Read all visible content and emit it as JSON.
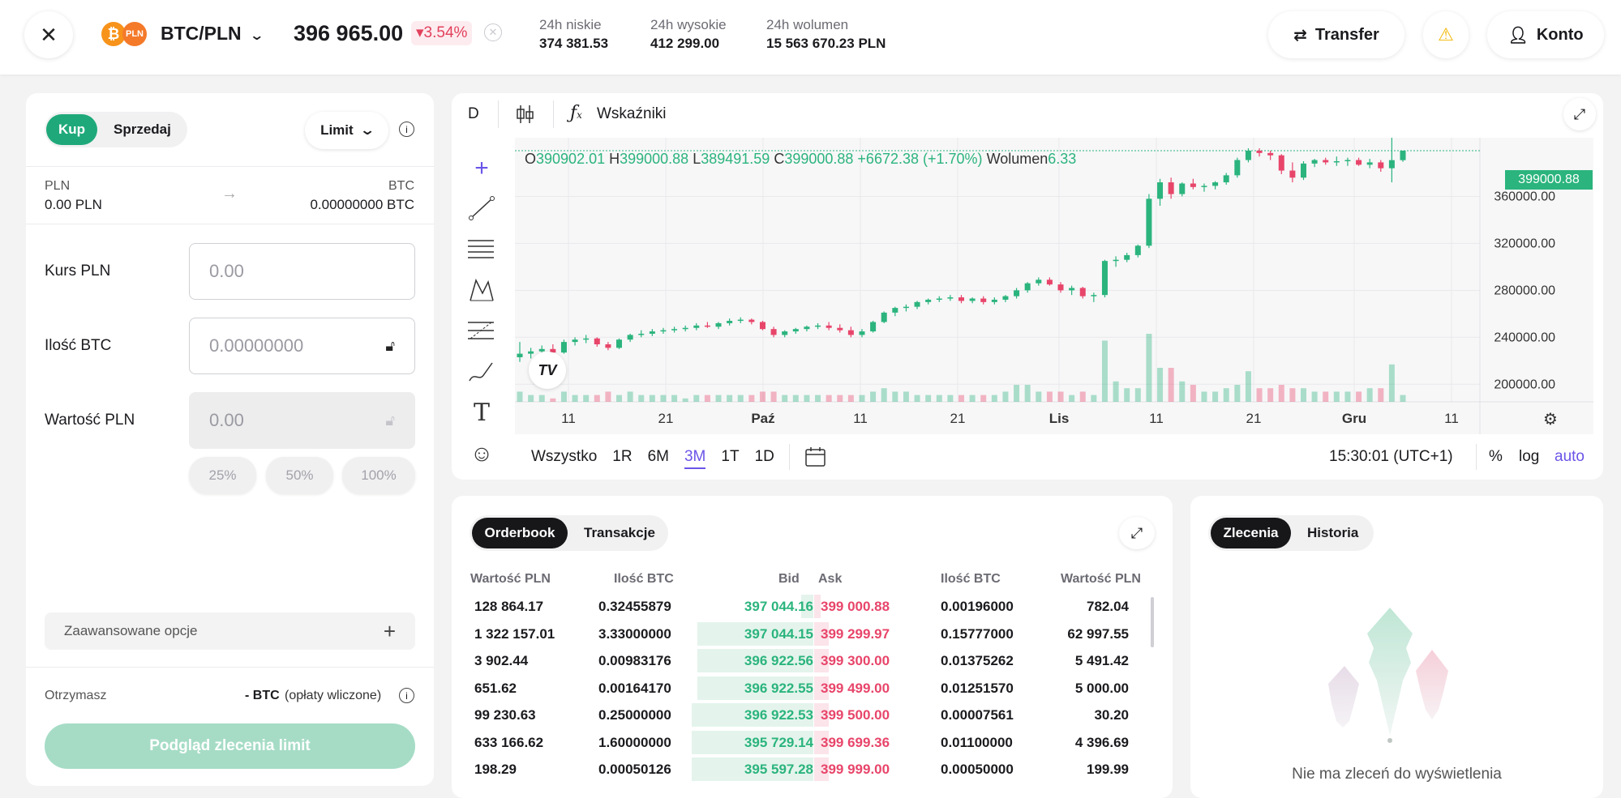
{
  "header": {
    "pair": "BTC/PLN",
    "coin_badge": "PLN",
    "price": "396 965.00",
    "change": "▾3.54%",
    "stats": [
      {
        "label": "24h niskie",
        "value": "374 381.53"
      },
      {
        "label": "24h wysokie",
        "value": "412 299.00"
      },
      {
        "label": "24h wolumen",
        "value": "15 563 670.23 PLN"
      }
    ],
    "transfer_label": "Transfer",
    "account_label": "Konto"
  },
  "order_form": {
    "buy_label": "Kup",
    "sell_label": "Sprzedaj",
    "order_type": "Limit",
    "from_currency": "PLN",
    "from_amount": "0.00 PLN",
    "to_currency": "BTC",
    "to_amount": "0.00000000 BTC",
    "rate_label": "Kurs PLN",
    "rate_placeholder": "0.00",
    "amount_label": "Ilość BTC",
    "amount_placeholder": "0.00000000",
    "value_label": "Wartość PLN",
    "value_placeholder": "0.00",
    "percents": [
      "25%",
      "50%",
      "100%"
    ],
    "advanced_label": "Zaawansowane opcje",
    "receive_label": "Otrzymasz",
    "receive_value": "- BTC",
    "receive_note": "(opłaty wliczone)",
    "submit_label": "Podgląd zlecenia limit"
  },
  "chart_toolbar": {
    "interval": "D",
    "indicators_label": "Wskaźniki",
    "ohlc": {
      "O": "390902.01",
      "H": "399000.88",
      "L": "389491.59",
      "C": "399000.88",
      "change": "+6672.38 (+1.70%)",
      "volume_label": "Wolumen",
      "volume": "6.33"
    },
    "last_price_tag": "399000.88",
    "ranges": [
      "Wszystko",
      "1R",
      "6M",
      "3M",
      "1T",
      "1D"
    ],
    "active_range": "3M",
    "time": "15:30:01 (UTC+1)",
    "scale_pct": "%",
    "scale_log": "log",
    "scale_auto": "auto"
  },
  "chart_data": {
    "type": "candlestick",
    "y_ticks": [
      "360000.00",
      "320000.00",
      "280000.00",
      "240000.00",
      "200000.00"
    ],
    "x_ticks": [
      "11",
      "21",
      "Paź",
      "11",
      "21",
      "Lis",
      "11",
      "21",
      "Gru",
      "11"
    ],
    "ylim": [
      185000,
      410000
    ],
    "candles": [
      [
        223000,
        236000,
        219000,
        226000,
        3
      ],
      [
        226000,
        231000,
        222000,
        228000,
        2
      ],
      [
        228000,
        233000,
        225000,
        230000,
        2
      ],
      [
        230000,
        234000,
        226000,
        227000,
        1
      ],
      [
        227000,
        238000,
        226000,
        236000,
        3
      ],
      [
        236000,
        240000,
        233000,
        238000,
        2
      ],
      [
        238000,
        242000,
        235000,
        239000,
        2
      ],
      [
        239000,
        240000,
        232000,
        234000,
        2
      ],
      [
        234000,
        236000,
        229000,
        231000,
        3
      ],
      [
        231000,
        239000,
        230000,
        238000,
        2
      ],
      [
        238000,
        243000,
        236000,
        242000,
        3
      ],
      [
        242000,
        246000,
        240000,
        243000,
        2
      ],
      [
        243000,
        247000,
        241000,
        245000,
        2
      ],
      [
        245000,
        248000,
        243000,
        246000,
        2
      ],
      [
        246000,
        249000,
        244000,
        247000,
        2
      ],
      [
        247000,
        250000,
        245000,
        248000,
        1
      ],
      [
        248000,
        252000,
        246000,
        250000,
        2
      ],
      [
        250000,
        253000,
        248000,
        249000,
        2
      ],
      [
        249000,
        253000,
        247000,
        252000,
        2
      ],
      [
        252000,
        256000,
        250000,
        254000,
        2
      ],
      [
        254000,
        257000,
        252000,
        255000,
        2
      ],
      [
        255000,
        256000,
        251000,
        253000,
        2
      ],
      [
        253000,
        254000,
        246000,
        247000,
        3
      ],
      [
        247000,
        249000,
        240000,
        242000,
        3
      ],
      [
        242000,
        246000,
        240000,
        245000,
        2
      ],
      [
        245000,
        248000,
        243000,
        247000,
        2
      ],
      [
        247000,
        250000,
        245000,
        249000,
        2
      ],
      [
        249000,
        252000,
        247000,
        250000,
        2
      ],
      [
        250000,
        253000,
        246000,
        248000,
        2
      ],
      [
        248000,
        251000,
        244000,
        246000,
        2
      ],
      [
        246000,
        249000,
        240000,
        242000,
        2
      ],
      [
        242000,
        247000,
        240000,
        245000,
        2
      ],
      [
        245000,
        254000,
        244000,
        253000,
        3
      ],
      [
        253000,
        262000,
        252000,
        261000,
        4
      ],
      [
        261000,
        266000,
        258000,
        265000,
        3
      ],
      [
        265000,
        268000,
        262000,
        266000,
        3
      ],
      [
        266000,
        271000,
        264000,
        270000,
        2
      ],
      [
        270000,
        273000,
        268000,
        272000,
        2
      ],
      [
        272000,
        275000,
        270000,
        273000,
        2
      ],
      [
        273000,
        276000,
        271000,
        274000,
        2
      ],
      [
        274000,
        276000,
        269000,
        271000,
        2
      ],
      [
        271000,
        274000,
        269000,
        273000,
        2
      ],
      [
        273000,
        275000,
        268000,
        270000,
        2
      ],
      [
        270000,
        274000,
        268000,
        272000,
        2
      ],
      [
        272000,
        276000,
        270000,
        275000,
        3
      ],
      [
        275000,
        282000,
        273000,
        280000,
        5
      ],
      [
        280000,
        287000,
        278000,
        286000,
        5
      ],
      [
        286000,
        291000,
        284000,
        289000,
        3
      ],
      [
        289000,
        291000,
        284000,
        285000,
        3
      ],
      [
        285000,
        287000,
        278000,
        280000,
        3
      ],
      [
        280000,
        284000,
        276000,
        282000,
        2
      ],
      [
        282000,
        283000,
        273000,
        275000,
        3
      ],
      [
        275000,
        278000,
        270000,
        276000,
        2
      ],
      [
        276000,
        306000,
        274000,
        305000,
        18
      ],
      [
        305000,
        309000,
        300000,
        306000,
        6
      ],
      [
        306000,
        312000,
        304000,
        310000,
        4
      ],
      [
        310000,
        319000,
        308000,
        318000,
        4
      ],
      [
        318000,
        362000,
        316000,
        358000,
        20
      ],
      [
        358000,
        375000,
        352000,
        372000,
        10
      ],
      [
        372000,
        376000,
        358000,
        362000,
        10
      ],
      [
        362000,
        372000,
        360000,
        371000,
        6
      ],
      [
        371000,
        375000,
        366000,
        368000,
        5
      ],
      [
        368000,
        371000,
        364000,
        369000,
        3
      ],
      [
        369000,
        373000,
        366000,
        372000,
        3
      ],
      [
        372000,
        380000,
        370000,
        378000,
        4
      ],
      [
        378000,
        393000,
        376000,
        391000,
        5
      ],
      [
        391000,
        401000,
        389000,
        399000,
        9
      ],
      [
        399000,
        401000,
        394000,
        397000,
        4
      ],
      [
        397000,
        399000,
        391000,
        395000,
        4
      ],
      [
        395000,
        396000,
        379000,
        382000,
        5
      ],
      [
        382000,
        389000,
        372000,
        376000,
        4
      ],
      [
        376000,
        390000,
        374000,
        388000,
        4
      ],
      [
        388000,
        392000,
        385000,
        391000,
        3
      ],
      [
        391000,
        393000,
        387000,
        389000,
        3
      ],
      [
        389000,
        394000,
        386000,
        390000,
        3
      ],
      [
        390000,
        393000,
        386000,
        391000,
        3
      ],
      [
        391000,
        393000,
        386000,
        387000,
        3
      ],
      [
        387000,
        392000,
        384000,
        389000,
        4
      ],
      [
        389000,
        391000,
        381000,
        384000,
        4
      ],
      [
        384000,
        411000,
        372000,
        390902,
        11
      ],
      [
        390902,
        399000,
        389491,
        399000,
        2
      ]
    ]
  },
  "orderbook": {
    "tabs": [
      "Orderbook",
      "Transakcje"
    ],
    "columns": [
      "Wartość PLN",
      "Ilość BTC",
      "Bid",
      "Ask",
      "Ilość BTC",
      "Wartość PLN"
    ],
    "rows": [
      {
        "bv": "128 864.17",
        "bq": "0.32455879",
        "bid": "397 044.16",
        "ask": "399 000.88",
        "aq": "0.00196000",
        "av": "782.04",
        "bd": 0.1,
        "ad": 0.05
      },
      {
        "bv": "1 322 157.01",
        "bq": "3.33000000",
        "bid": "397 044.15",
        "ask": "399 299.97",
        "aq": "0.15777000",
        "av": "62 997.55",
        "bd": 0.95,
        "ad": 0.12
      },
      {
        "bv": "3 902.44",
        "bq": "0.00983176",
        "bid": "396 922.56",
        "ask": "399 300.00",
        "aq": "0.01375262",
        "av": "5 491.42",
        "bd": 0.95,
        "ad": 0.12
      },
      {
        "bv": "651.62",
        "bq": "0.00164170",
        "bid": "396 922.55",
        "ask": "399 499.00",
        "aq": "0.01251570",
        "av": "5 000.00",
        "bd": 0.95,
        "ad": 0.12
      },
      {
        "bv": "99 230.63",
        "bq": "0.25000000",
        "bid": "396 922.53",
        "ask": "399 500.00",
        "aq": "0.00007561",
        "av": "30.20",
        "bd": 1.0,
        "ad": 0.12
      },
      {
        "bv": "633 166.62",
        "bq": "1.60000000",
        "bid": "395 729.14",
        "ask": "399 699.36",
        "aq": "0.01100000",
        "av": "4 396.69",
        "bd": 1.0,
        "ad": 0.12
      },
      {
        "bv": "198.29",
        "bq": "0.00050126",
        "bid": "395 597.28",
        "ask": "399 999.00",
        "aq": "0.00050000",
        "av": "199.99",
        "bd": 1.0,
        "ad": 0.12
      }
    ]
  },
  "orders": {
    "tabs": [
      "Zlecenia",
      "Historia"
    ],
    "empty_text": "Nie ma zleceń do wyświetlenia"
  },
  "colors": {
    "up": "#2bb47d",
    "down": "#e8456a",
    "accent": "#1fa97a",
    "link": "#6a55e8"
  }
}
